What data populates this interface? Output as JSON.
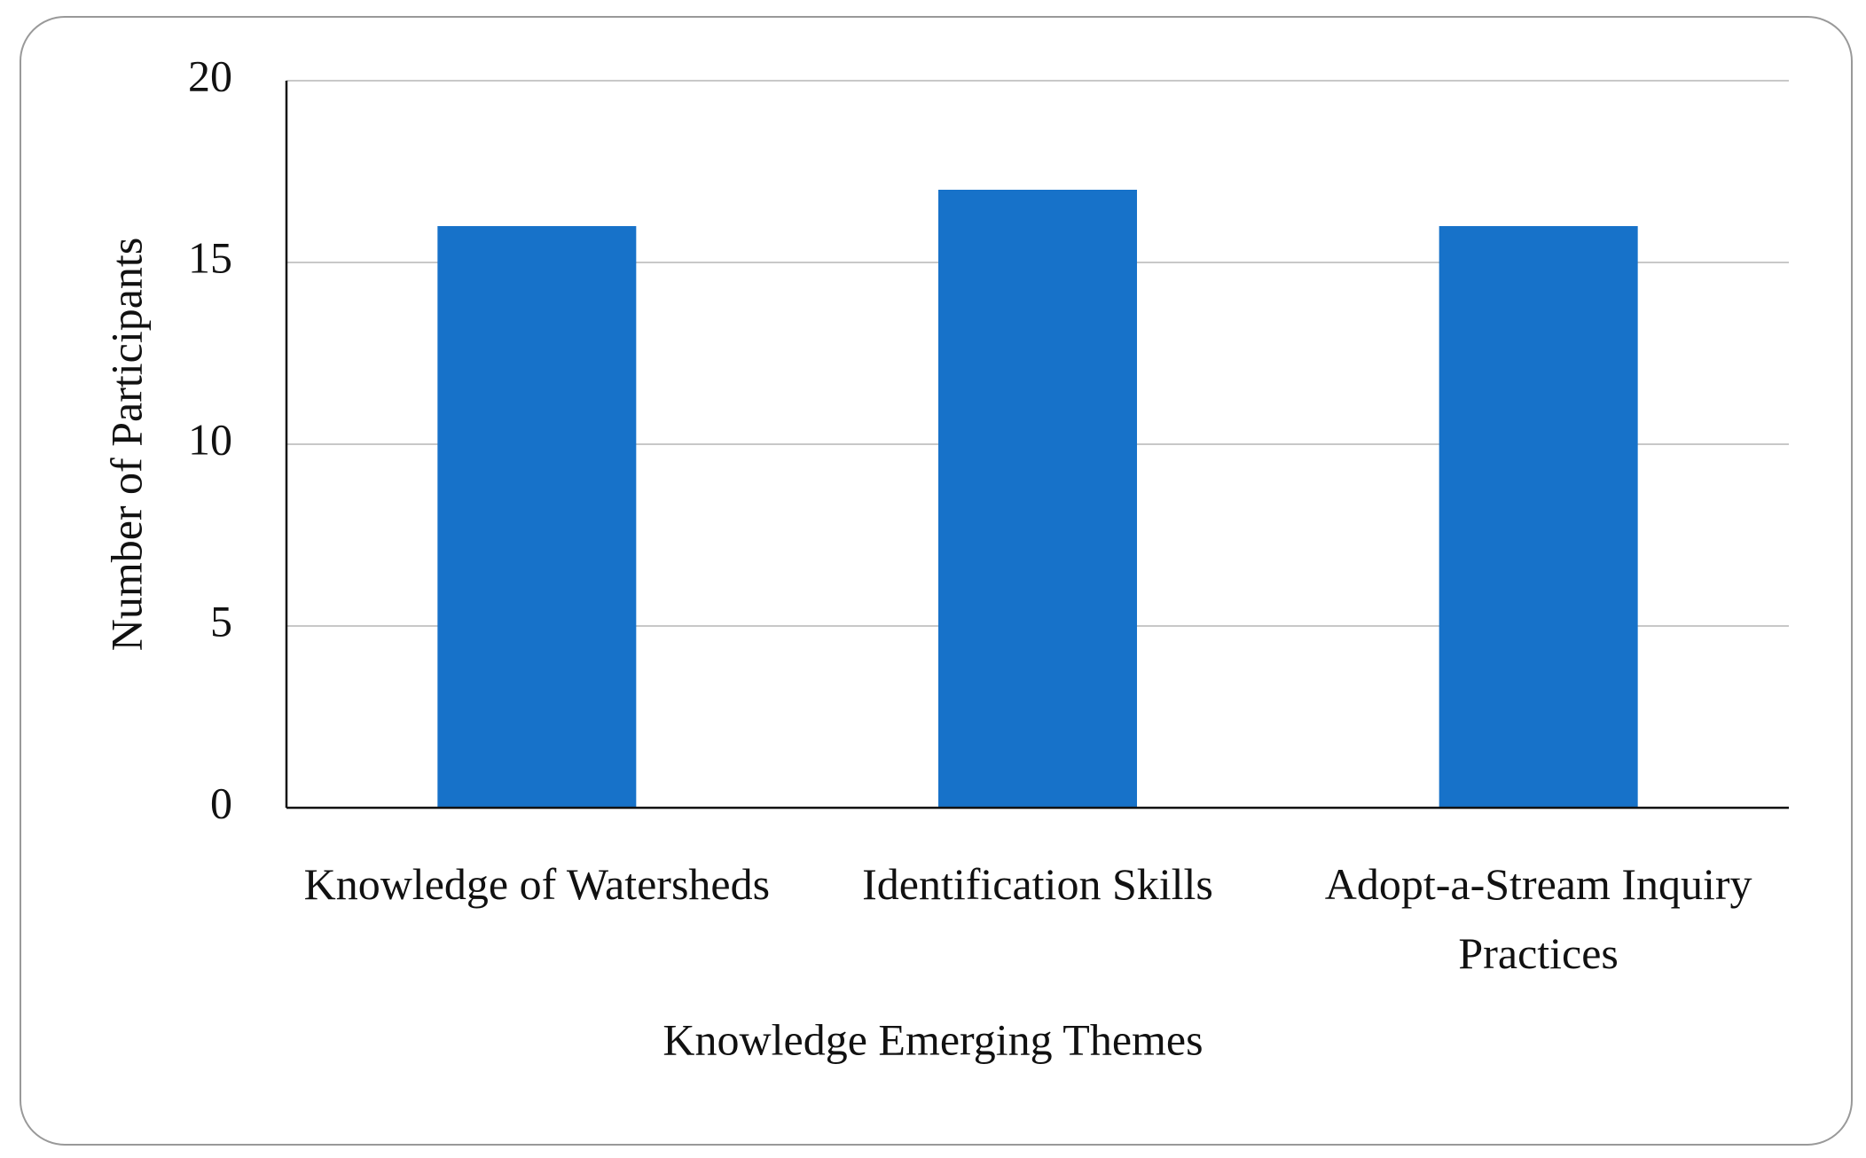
{
  "chart_data": {
    "type": "bar",
    "x_label": "Knowledge Emerging Themes",
    "y_label": "Number of Participants",
    "categories": [
      "Knowledge of Watersheds",
      "Identification Skills",
      "Adopt-a-Stream Inquiry Practices"
    ],
    "values": [
      16,
      17,
      16
    ],
    "color": "#1772c9",
    "ylim": [
      0,
      20
    ],
    "yticks": [
      0,
      5,
      10,
      15,
      20
    ],
    "grid": true
  }
}
